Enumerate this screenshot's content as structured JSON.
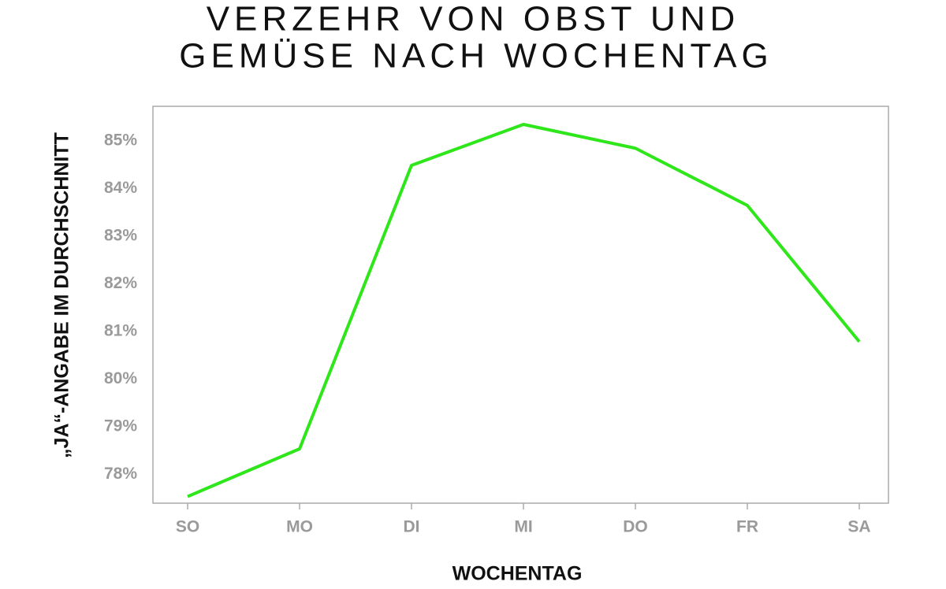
{
  "chart_data": {
    "type": "line",
    "title": [
      "VERZEHR VON OBST UND",
      "GEMÜSE NACH WOCHENTAG"
    ],
    "x_label": "WOCHENTAG",
    "y_label": "„JA“-ANGABE IM DURCHSCHNITT",
    "categories": [
      "SO",
      "MO",
      "DI",
      "MI",
      "DO",
      "FR",
      "SA"
    ],
    "series": [
      {
        "color": "#2ee61a",
        "values": [
          77.54,
          78.54,
          84.49,
          85.35,
          84.85,
          83.65,
          80.79
        ]
      }
    ],
    "ylim": [
      77.4,
      85.73
    ],
    "yticks": [
      {
        "value": 78,
        "label": "78%"
      },
      {
        "value": 79,
        "label": "79%"
      },
      {
        "value": 80,
        "label": "80%"
      },
      {
        "value": 81,
        "label": "81%"
      },
      {
        "value": 82,
        "label": "82%"
      },
      {
        "value": 83,
        "label": "83%"
      },
      {
        "value": 84,
        "label": "84%"
      },
      {
        "value": 85,
        "label": "85%"
      }
    ],
    "grid": false
  }
}
